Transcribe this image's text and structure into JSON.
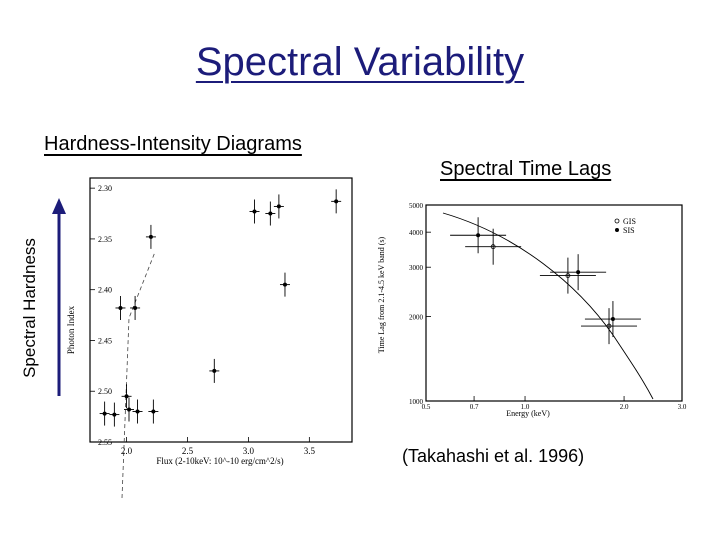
{
  "slide": {
    "title": "Spectral Variability",
    "left_heading": "Hardness-Intensity Diagrams",
    "right_heading": "Spectral Time Lags",
    "arrow_label": "Spectral Hardness",
    "citation": "(Takahashi et al. 1996)",
    "title_color": "#1c1c7a",
    "arrow_color": "#1c1c7a"
  },
  "chart_data": [
    {
      "type": "scatter",
      "xlabel": "Flux (2-10keV: 10^-10 erg/cm^2/s)",
      "ylabel": "Photon Index",
      "xlim": [
        1.7,
        3.85
      ],
      "ylim": [
        2.55,
        2.29
      ],
      "x_ticks": [
        "2.0",
        "2.5",
        "3.0",
        "3.5"
      ],
      "x_tick_values": [
        2.0,
        2.5,
        3.0,
        3.5
      ],
      "y_ticks": [
        "2.30",
        "2.35",
        "2.40",
        "2.45",
        "2.50",
        "2.55"
      ],
      "y_tick_values": [
        2.3,
        2.35,
        2.4,
        2.45,
        2.5,
        2.55
      ],
      "points": [
        {
          "x": 1.82,
          "y": 2.522
        },
        {
          "x": 1.9,
          "y": 2.523
        },
        {
          "x": 1.95,
          "y": 2.418
        },
        {
          "x": 2.0,
          "y": 2.505
        },
        {
          "x": 2.02,
          "y": 2.518
        },
        {
          "x": 2.07,
          "y": 2.418
        },
        {
          "x": 2.09,
          "y": 2.52
        },
        {
          "x": 2.2,
          "y": 2.348
        },
        {
          "x": 2.22,
          "y": 2.52
        },
        {
          "x": 2.72,
          "y": 2.48
        },
        {
          "x": 3.05,
          "y": 2.323
        },
        {
          "x": 3.18,
          "y": 2.325
        },
        {
          "x": 3.25,
          "y": 2.318
        },
        {
          "x": 3.3,
          "y": 2.395
        },
        {
          "x": 3.72,
          "y": 2.313
        }
      ]
    },
    {
      "type": "scatter",
      "xlabel": "Energy (keV)",
      "ylabel": "Time Lag from 2.1-4.5 keV band (s)",
      "log_x": true,
      "log_y": true,
      "xlim": [
        0.5,
        3.0
      ],
      "ylim": [
        1000,
        5000
      ],
      "x_ticks": [
        "0.5",
        "0.7",
        "1.0",
        "2.0",
        "3.0"
      ],
      "x_tick_values": [
        0.5,
        0.7,
        1.0,
        2.0,
        3.0
      ],
      "y_ticks": [
        "5000",
        "4000",
        "3000",
        "2000",
        "1000"
      ],
      "y_tick_values": [
        5000,
        4000,
        3000,
        2000,
        1000
      ],
      "legend": [
        "GIS",
        "SIS"
      ],
      "series": [
        {
          "name": "GIS",
          "points": [
            {
              "x": 0.8,
              "y": 3550
            },
            {
              "x": 1.35,
              "y": 2800
            },
            {
              "x": 1.8,
              "y": 1850
            }
          ]
        },
        {
          "name": "SIS",
          "points": [
            {
              "x": 0.72,
              "y": 3900
            },
            {
              "x": 1.45,
              "y": 2880
            },
            {
              "x": 1.85,
              "y": 1960
            }
          ]
        }
      ]
    }
  ]
}
